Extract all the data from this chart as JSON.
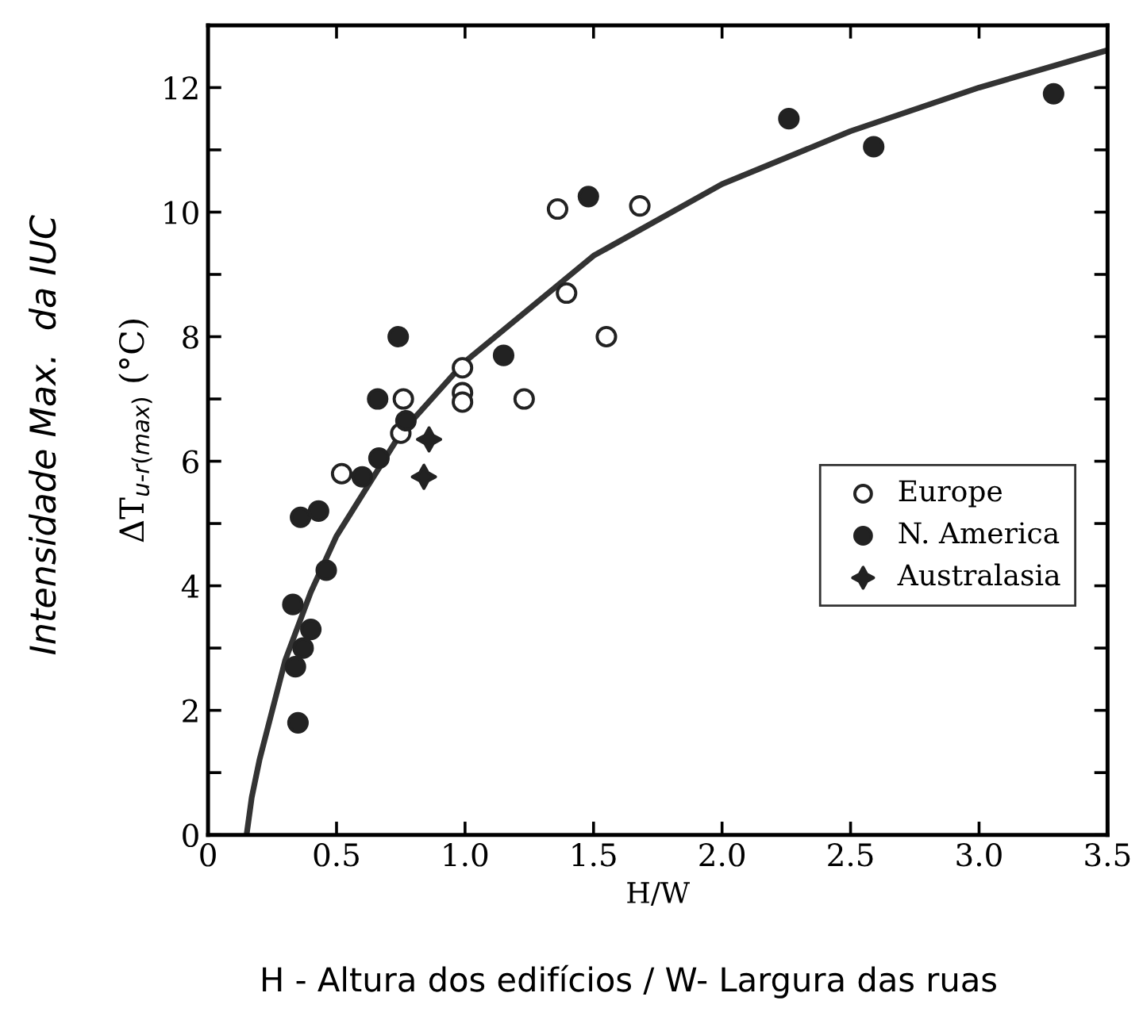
{
  "chart_data": {
    "type": "scatter",
    "xlabel": "H/W",
    "ylabel": "ΔT$_{u‑r(max)}$ (°C)",
    "annotations": [
      "Intensidade Max.  da IUC",
      "H - Altura dos edifícios / W- Largura das ruas"
    ],
    "xlim": [
      0,
      3.5
    ],
    "xticks": [
      {
        "value": 0,
        "label": "0"
      },
      {
        "value": 0.5,
        "label": "0.5"
      },
      {
        "value": 1,
        "label": "1.0"
      },
      {
        "value": 1.5,
        "label": "1.5"
      },
      {
        "value": 2,
        "label": "2.0"
      },
      {
        "value": 2.5,
        "label": "2.5"
      },
      {
        "value": 3,
        "label": "3.0"
      },
      {
        "value": 3.5,
        "label": "3.5"
      }
    ],
    "ylim": [
      0,
      13
    ],
    "yticks": [
      0,
      {
        "value": 1,
        "label": null
      },
      2,
      {
        "value": 3,
        "label": null
      },
      4,
      {
        "value": 5,
        "label": null
      },
      6,
      {
        "value": 7,
        "label": null
      },
      8,
      {
        "value": 9,
        "label": null
      },
      10,
      {
        "value": 11,
        "label": null
      },
      12
    ],
    "grid": false,
    "legend": "right",
    "series": [
      {
        "name": "Europe",
        "color": "#ffffff",
        "marker": "circle",
        "x": [
          1.395,
          1.55,
          0.99,
          0.99,
          0.99,
          1.23,
          0.76,
          0.75,
          0.52,
          1.36,
          1.68
        ],
        "values": [
          8.7,
          8.0,
          7.5,
          7.1,
          6.95,
          7.0,
          7.0,
          6.45,
          5.8,
          10.05,
          10.1
        ]
      },
      {
        "name": "N. America",
        "color": "#222222",
        "marker": "circle",
        "x": [
          0.74,
          1.15,
          0.66,
          0.77,
          0.665,
          0.6,
          0.36,
          0.43,
          0.46,
          0.33,
          0.4,
          0.37,
          0.34,
          0.35,
          1.48,
          2.26,
          2.59,
          3.29
        ],
        "values": [
          8.0,
          7.7,
          7.0,
          6.65,
          6.05,
          5.75,
          5.1,
          5.2,
          4.25,
          3.7,
          3.3,
          3.0,
          2.7,
          1.8,
          10.25,
          11.5,
          11.05,
          11.9
        ]
      },
      {
        "name": "Australasia",
        "color": "#222222",
        "marker": "star",
        "x": [
          0.86,
          0.84
        ],
        "values": [
          6.35,
          5.75
        ]
      },
      {
        "type": "line",
        "color": "#333333",
        "marker": "none",
        "line_style": "solid",
        "x": [
          0.15,
          0.17,
          0.2,
          0.3,
          0.4,
          0.5,
          0.75,
          1,
          1.5,
          2,
          2.5,
          3,
          3.5
        ],
        "values": [
          0,
          0.6,
          1.2,
          2.8,
          3.9,
          4.8,
          6.45,
          7.6,
          9.3,
          10.45,
          11.3,
          12.0,
          12.6
        ]
      }
    ]
  }
}
